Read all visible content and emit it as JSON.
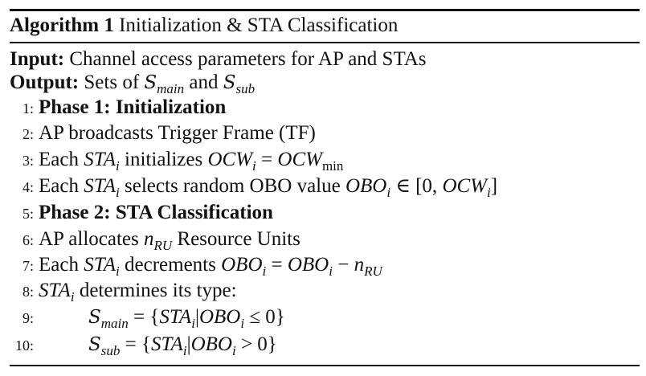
{
  "title": {
    "label": "Algorithm 1",
    "text": "Initialization & STA Classification"
  },
  "header_lines": [
    [
      [
        "b",
        "Input:"
      ],
      [
        "t",
        " Channel access parameters for AP and STAs"
      ]
    ],
    [
      [
        "b",
        "Output:"
      ],
      [
        "t",
        " Sets of "
      ],
      [
        "cal",
        "S"
      ],
      [
        "sub",
        "main"
      ],
      [
        "t",
        " and "
      ],
      [
        "cal",
        "S"
      ],
      [
        "sub",
        "sub"
      ]
    ]
  ],
  "steps": [
    {
      "num": "1:",
      "indent": 0,
      "segs": [
        [
          "b",
          "Phase 1: Initialization"
        ]
      ]
    },
    {
      "num": "2:",
      "indent": 0,
      "segs": [
        [
          "t",
          "AP broadcasts Trigger Frame (TF)"
        ]
      ]
    },
    {
      "num": "3:",
      "indent": 0,
      "segs": [
        [
          "t",
          "Each "
        ],
        [
          "m",
          "STA"
        ],
        [
          "sub",
          "i"
        ],
        [
          "t",
          " initializes "
        ],
        [
          "m",
          "OCW"
        ],
        [
          "sub",
          "i"
        ],
        [
          "t",
          " = "
        ],
        [
          "m",
          "OCW"
        ],
        [
          "subr",
          "min"
        ]
      ]
    },
    {
      "num": "4:",
      "indent": 0,
      "segs": [
        [
          "t",
          "Each "
        ],
        [
          "m",
          "STA"
        ],
        [
          "sub",
          "i"
        ],
        [
          "t",
          " selects random OBO value "
        ],
        [
          "m",
          "OBO"
        ],
        [
          "sub",
          "i"
        ],
        [
          "t",
          " ∈ [0, "
        ],
        [
          "m",
          "OCW"
        ],
        [
          "sub",
          "i"
        ],
        [
          "t",
          "]"
        ]
      ]
    },
    {
      "num": "5:",
      "indent": 0,
      "segs": [
        [
          "b",
          "Phase 2: STA Classification"
        ]
      ]
    },
    {
      "num": "6:",
      "indent": 0,
      "segs": [
        [
          "t",
          "AP allocates "
        ],
        [
          "m",
          "n"
        ],
        [
          "sub",
          "RU"
        ],
        [
          "t",
          " Resource Units"
        ]
      ]
    },
    {
      "num": "7:",
      "indent": 0,
      "segs": [
        [
          "t",
          "Each "
        ],
        [
          "m",
          "STA"
        ],
        [
          "sub",
          "i"
        ],
        [
          "t",
          " decrements "
        ],
        [
          "m",
          "OBO"
        ],
        [
          "sub",
          "i"
        ],
        [
          "t",
          " = "
        ],
        [
          "m",
          "OBO"
        ],
        [
          "sub",
          "i"
        ],
        [
          "t",
          " − "
        ],
        [
          "m",
          "n"
        ],
        [
          "sub",
          "RU"
        ]
      ]
    },
    {
      "num": "8:",
      "indent": 0,
      "segs": [
        [
          "m",
          "STA"
        ],
        [
          "sub",
          "i"
        ],
        [
          "t",
          " determines its type:"
        ]
      ]
    },
    {
      "num": "9:",
      "indent": 1,
      "segs": [
        [
          "cal",
          "S"
        ],
        [
          "sub",
          "main"
        ],
        [
          "t",
          " = {"
        ],
        [
          "m",
          "STA"
        ],
        [
          "sub",
          "i"
        ],
        [
          "t",
          "|"
        ],
        [
          "m",
          "OBO"
        ],
        [
          "sub",
          "i"
        ],
        [
          "t",
          " ≤ 0}"
        ]
      ]
    },
    {
      "num": "10:",
      "indent": 1,
      "segs": [
        [
          "cal",
          "S"
        ],
        [
          "sub",
          "sub"
        ],
        [
          "t",
          " = {"
        ],
        [
          "m",
          "STA"
        ],
        [
          "sub",
          "i"
        ],
        [
          "t",
          "|"
        ],
        [
          "m",
          "OBO"
        ],
        [
          "sub",
          "i"
        ],
        [
          "t",
          " > 0}"
        ]
      ]
    }
  ]
}
